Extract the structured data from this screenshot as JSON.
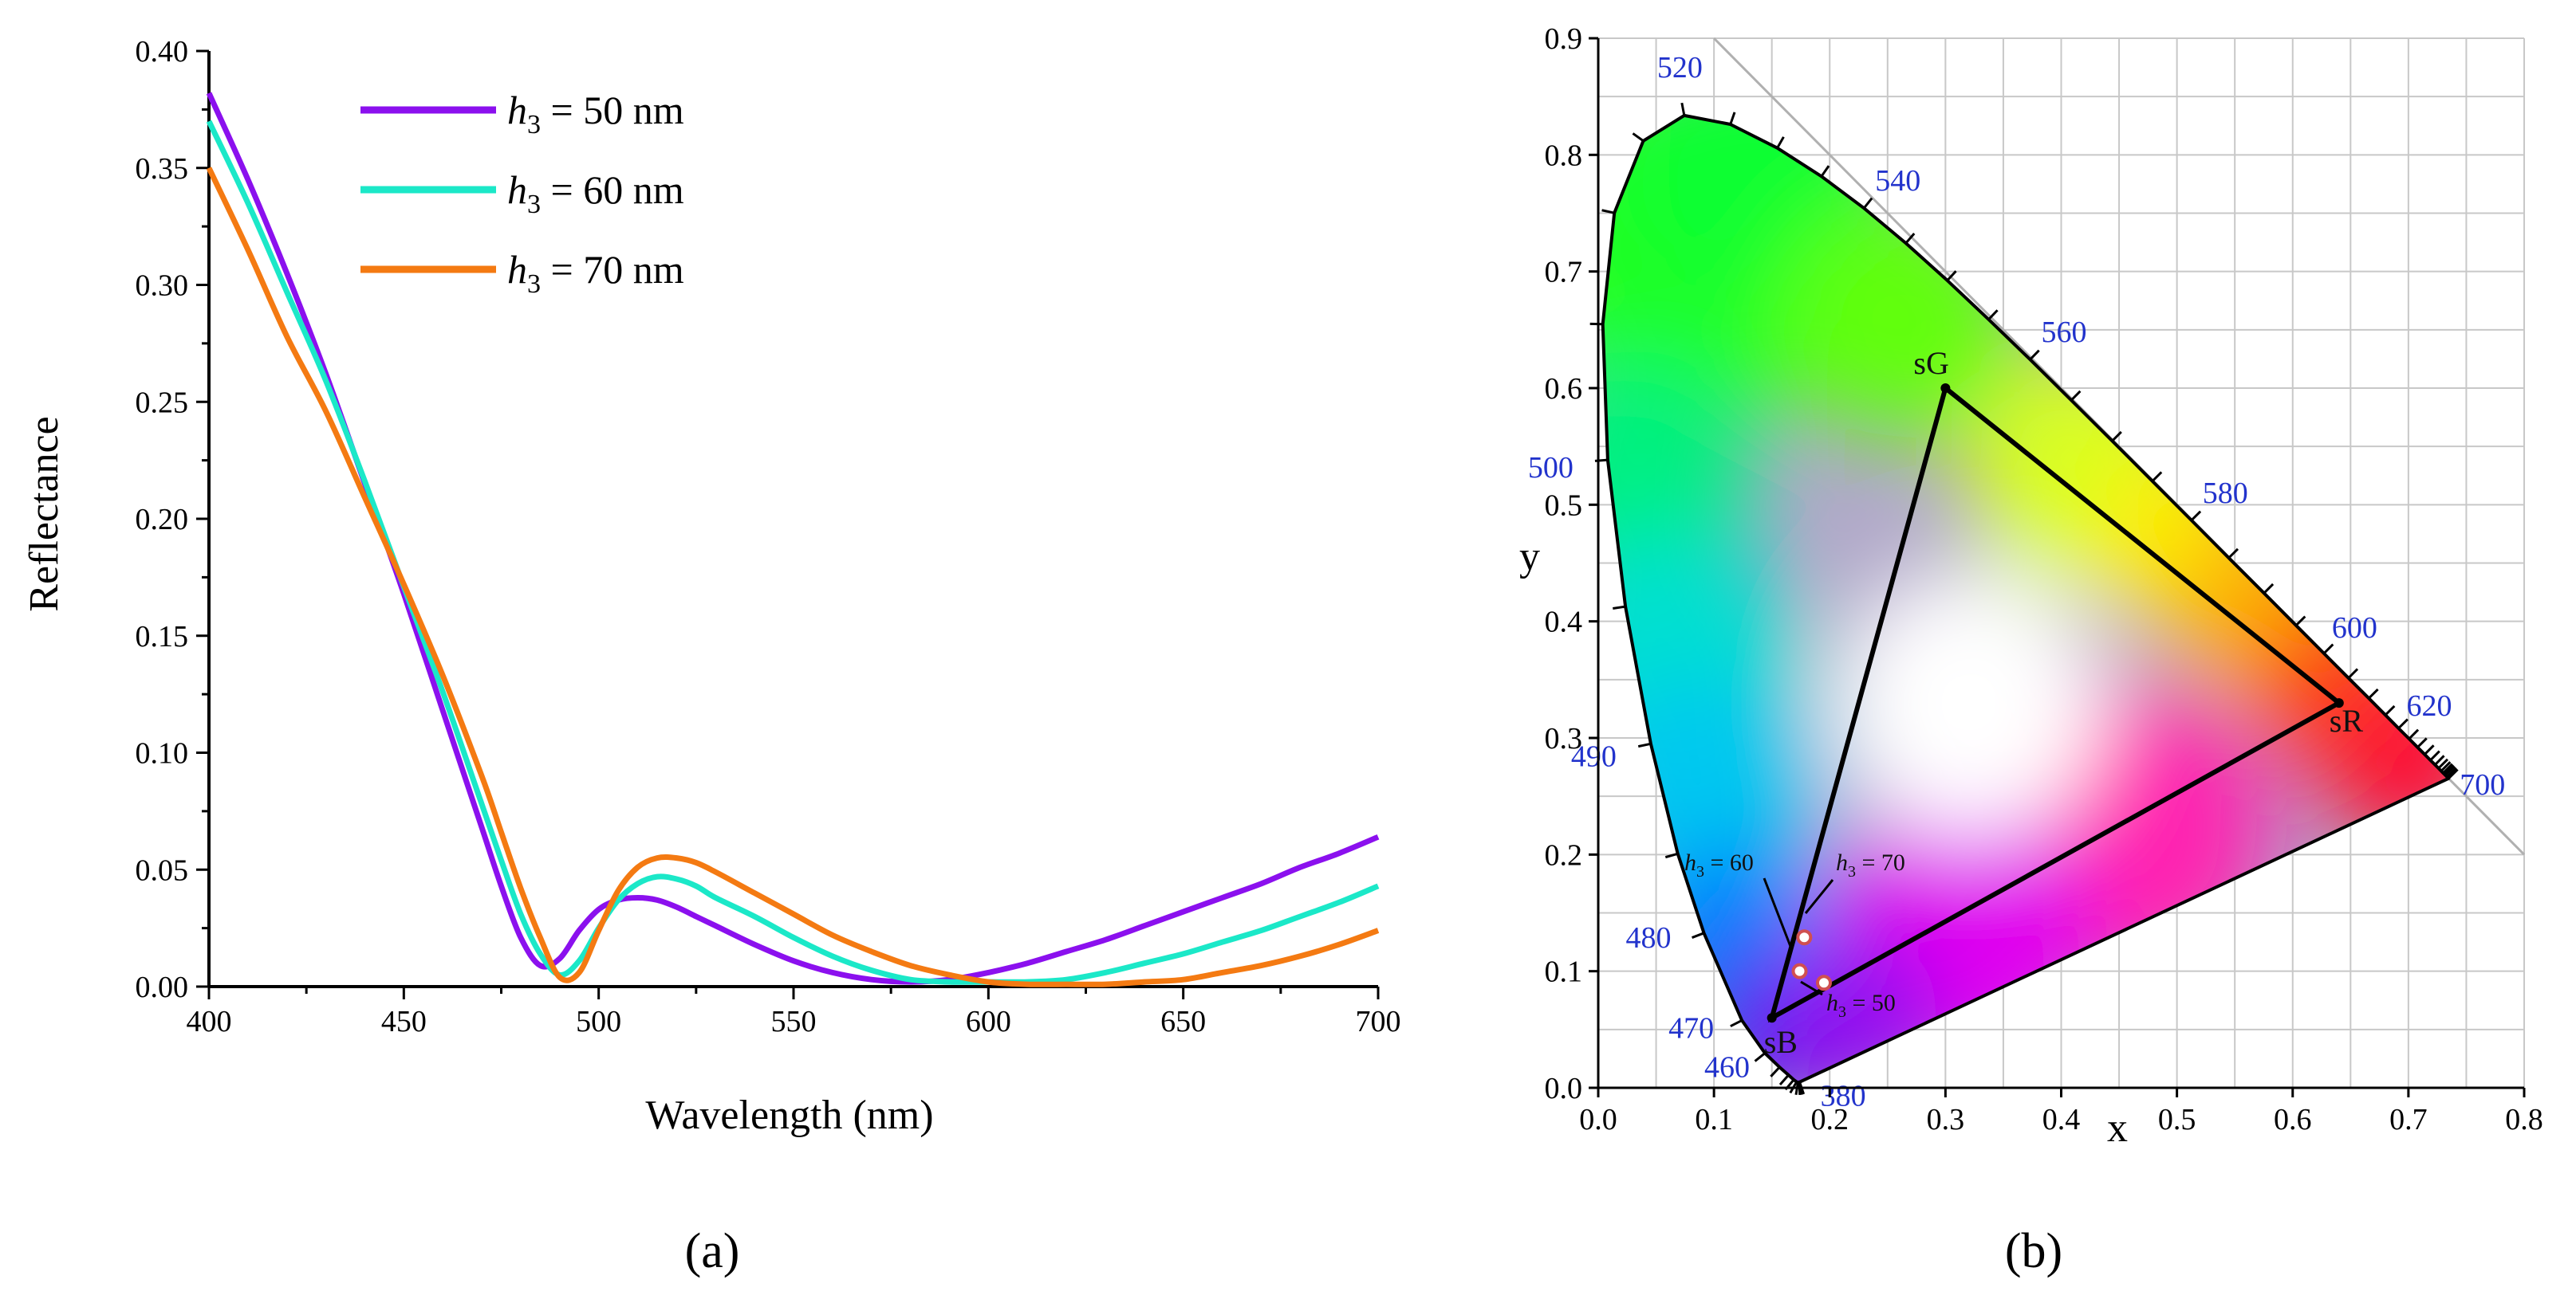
{
  "chart_data": [
    {
      "type": "line",
      "panel_label": "(a)",
      "xlabel": "Wavelength (nm)",
      "ylabel": "Reflectance",
      "xlim": [
        400,
        700
      ],
      "ylim": [
        0,
        0.4
      ],
      "xticks": [
        "400",
        "450",
        "500",
        "550",
        "600",
        "650",
        "700"
      ],
      "yticks": [
        "0.00",
        "0.05",
        "0.10",
        "0.15",
        "0.20",
        "0.25",
        "0.30",
        "0.35",
        "0.40"
      ],
      "legend_placement": "top-left",
      "grid": false,
      "x": [
        400,
        410,
        420,
        430,
        440,
        450,
        460,
        470,
        475,
        480,
        485,
        490,
        495,
        500,
        505,
        510,
        515,
        520,
        525,
        530,
        540,
        550,
        560,
        570,
        580,
        590,
        600,
        610,
        620,
        630,
        640,
        650,
        660,
        670,
        680,
        690,
        700
      ],
      "series": [
        {
          "legend_symbol": "h",
          "legend_sub": "3",
          "legend_text": " = 50 nm",
          "color": "#8b10ee",
          "values": [
            0.382,
            0.345,
            0.305,
            0.262,
            0.215,
            0.168,
            0.118,
            0.068,
            0.043,
            0.021,
            0.009,
            0.012,
            0.024,
            0.033,
            0.037,
            0.038,
            0.037,
            0.034,
            0.03,
            0.026,
            0.018,
            0.011,
            0.006,
            0.003,
            0.002,
            0.003,
            0.006,
            0.01,
            0.015,
            0.02,
            0.026,
            0.032,
            0.038,
            0.044,
            0.051,
            0.057,
            0.064
          ]
        },
        {
          "legend_symbol": "h",
          "legend_sub": "3",
          "legend_text": " = 60 nm",
          "color": "#1be8c8",
          "values": [
            0.37,
            0.335,
            0.297,
            0.259,
            0.216,
            0.171,
            0.126,
            0.078,
            0.054,
            0.031,
            0.014,
            0.005,
            0.011,
            0.025,
            0.037,
            0.044,
            0.047,
            0.046,
            0.043,
            0.038,
            0.03,
            0.021,
            0.013,
            0.007,
            0.003,
            0.002,
            0.002,
            0.002,
            0.003,
            0.006,
            0.01,
            0.014,
            0.019,
            0.024,
            0.03,
            0.036,
            0.043
          ]
        },
        {
          "legend_symbol": "h",
          "legend_sub": "3",
          "legend_text": " = 70 nm",
          "color": "#f47a12",
          "values": [
            0.35,
            0.315,
            0.278,
            0.246,
            0.209,
            0.172,
            0.133,
            0.09,
            0.066,
            0.042,
            0.021,
            0.004,
            0.006,
            0.024,
            0.041,
            0.051,
            0.055,
            0.055,
            0.053,
            0.049,
            0.04,
            0.031,
            0.022,
            0.015,
            0.009,
            0.005,
            0.002,
            0.001,
            0.001,
            0.001,
            0.002,
            0.003,
            0.006,
            0.009,
            0.013,
            0.018,
            0.024
          ]
        }
      ]
    },
    {
      "type": "scatter",
      "subtype": "cie-1931-chromaticity-diagram",
      "panel_label": "(b)",
      "xlabel": "x",
      "ylabel": "y",
      "xlim": [
        0.0,
        0.8
      ],
      "ylim": [
        0.0,
        0.9
      ],
      "xticks": [
        "0.0",
        "0.1",
        "0.2",
        "0.3",
        "0.4",
        "0.5",
        "0.6",
        "0.7",
        "0.8"
      ],
      "yticks": [
        "0.0",
        "0.1",
        "0.2",
        "0.3",
        "0.4",
        "0.5",
        "0.6",
        "0.7",
        "0.8",
        "0.9"
      ],
      "grid": true,
      "wavelength_labels": [
        {
          "label": "380",
          "x": 0.1741,
          "y": 0.005
        },
        {
          "label": "460",
          "x": 0.144,
          "y": 0.0297
        },
        {
          "label": "470",
          "x": 0.1241,
          "y": 0.0578
        },
        {
          "label": "480",
          "x": 0.0913,
          "y": 0.1327
        },
        {
          "label": "490",
          "x": 0.0454,
          "y": 0.295
        },
        {
          "label": "500",
          "x": 0.0082,
          "y": 0.5384
        },
        {
          "label": "520",
          "x": 0.0743,
          "y": 0.8338
        },
        {
          "label": "540",
          "x": 0.2296,
          "y": 0.7543
        },
        {
          "label": "560",
          "x": 0.3731,
          "y": 0.6245
        },
        {
          "label": "580",
          "x": 0.5125,
          "y": 0.4866
        },
        {
          "label": "600",
          "x": 0.627,
          "y": 0.3725
        },
        {
          "label": "620",
          "x": 0.6915,
          "y": 0.3083
        },
        {
          "label": "700",
          "x": 0.7347,
          "y": 0.2653
        }
      ],
      "spectral_locus": [
        [
          0.1741,
          0.005
        ],
        [
          0.174,
          0.005
        ],
        [
          0.1738,
          0.0049
        ],
        [
          0.1736,
          0.0049
        ],
        [
          0.1733,
          0.0048
        ],
        [
          0.1726,
          0.0048
        ],
        [
          0.1714,
          0.0051
        ],
        [
          0.1689,
          0.0069
        ],
        [
          0.1644,
          0.0109
        ],
        [
          0.1566,
          0.0177
        ],
        [
          0.144,
          0.0297
        ],
        [
          0.1241,
          0.0578
        ],
        [
          0.0913,
          0.1327
        ],
        [
          0.0687,
          0.2007
        ],
        [
          0.0454,
          0.295
        ],
        [
          0.0235,
          0.4127
        ],
        [
          0.0082,
          0.5384
        ],
        [
          0.0039,
          0.6548
        ],
        [
          0.0139,
          0.7502
        ],
        [
          0.0389,
          0.812
        ],
        [
          0.0743,
          0.8338
        ],
        [
          0.1142,
          0.8262
        ],
        [
          0.1547,
          0.8059
        ],
        [
          0.1929,
          0.7816
        ],
        [
          0.2296,
          0.7543
        ],
        [
          0.2658,
          0.7243
        ],
        [
          0.3016,
          0.6923
        ],
        [
          0.3373,
          0.6589
        ],
        [
          0.3731,
          0.6245
        ],
        [
          0.4087,
          0.5896
        ],
        [
          0.4441,
          0.5547
        ],
        [
          0.4788,
          0.5202
        ],
        [
          0.5125,
          0.4866
        ],
        [
          0.5448,
          0.4544
        ],
        [
          0.5752,
          0.4242
        ],
        [
          0.6029,
          0.3965
        ],
        [
          0.627,
          0.3725
        ],
        [
          0.6482,
          0.3514
        ],
        [
          0.6658,
          0.334
        ],
        [
          0.6801,
          0.3197
        ],
        [
          0.6915,
          0.3083
        ],
        [
          0.7006,
          0.2993
        ],
        [
          0.7079,
          0.292
        ],
        [
          0.714,
          0.2859
        ],
        [
          0.719,
          0.2809
        ],
        [
          0.723,
          0.277
        ],
        [
          0.726,
          0.274
        ],
        [
          0.7283,
          0.2717
        ],
        [
          0.73,
          0.27
        ],
        [
          0.7311,
          0.2689
        ],
        [
          0.732,
          0.268
        ],
        [
          0.7334,
          0.2666
        ],
        [
          0.7347,
          0.2653
        ]
      ],
      "gamut_triangle": [
        {
          "label": "sR",
          "x": 0.64,
          "y": 0.33
        },
        {
          "label": "sG",
          "x": 0.3,
          "y": 0.6
        },
        {
          "label": "sB",
          "x": 0.15,
          "y": 0.06
        }
      ],
      "points": [
        {
          "annotation_symbol": "h",
          "annotation_sub": "3",
          "annotation_text": " = 50",
          "x": 0.195,
          "y": 0.09
        },
        {
          "annotation_symbol": "h",
          "annotation_sub": "3",
          "annotation_text": " = 60",
          "x": 0.174,
          "y": 0.1
        },
        {
          "annotation_symbol": "h",
          "annotation_sub": "3",
          "annotation_text": " = 70",
          "x": 0.178,
          "y": 0.129
        }
      ]
    }
  ]
}
